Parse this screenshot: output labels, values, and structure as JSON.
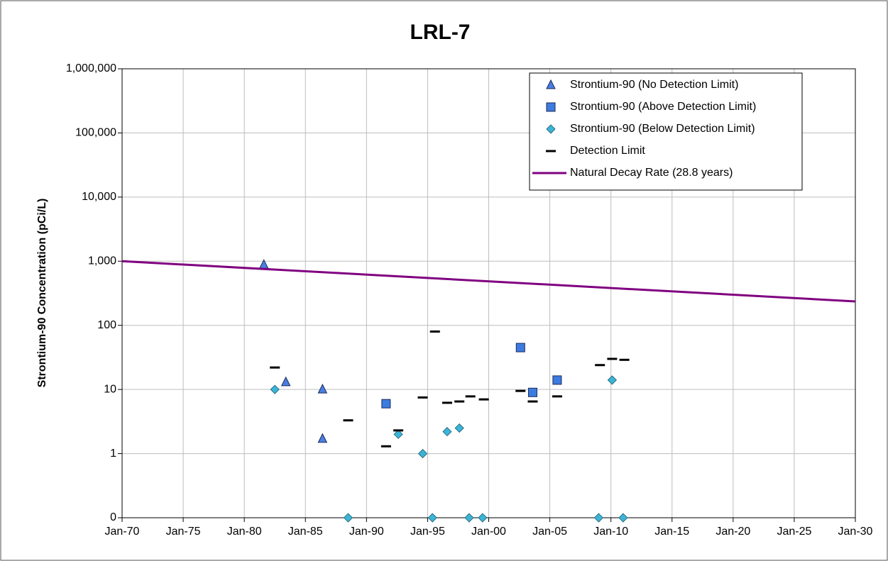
{
  "chart_data": {
    "type": "scatter",
    "title": "LRL-7",
    "y_label": "Strontium-90 Concentration (pCi/L)",
    "y_log": true,
    "grid": true,
    "legend": "upper right",
    "xlim": [
      1970,
      2030
    ],
    "xticks": [
      {
        "value": 1970,
        "label": "Jan-70"
      },
      {
        "value": 1975,
        "label": "Jan-75"
      },
      {
        "value": 1980,
        "label": "Jan-80"
      },
      {
        "value": 1985,
        "label": "Jan-85"
      },
      {
        "value": 1990,
        "label": "Jan-90"
      },
      {
        "value": 1995,
        "label": "Jan-95"
      },
      {
        "value": 2000,
        "label": "Jan-00"
      },
      {
        "value": 2005,
        "label": "Jan-05"
      },
      {
        "value": 2010,
        "label": "Jan-10"
      },
      {
        "value": 2015,
        "label": "Jan-15"
      },
      {
        "value": 2020,
        "label": "Jan-20"
      },
      {
        "value": 2025,
        "label": "Jan-25"
      },
      {
        "value": 2030,
        "label": "Jan-30"
      }
    ],
    "ylim": [
      0.1,
      1000000
    ],
    "yticks": [
      {
        "value": 0.1,
        "label": "0"
      },
      1,
      10,
      100,
      {
        "value": 1000,
        "label": "1,000"
      },
      {
        "value": 10000,
        "label": "10,000"
      },
      {
        "value": 100000,
        "label": "100,000"
      },
      {
        "value": 1000000,
        "label": "1,000,000"
      }
    ],
    "series": [
      {
        "name": "Strontium-90 (No Detection Limit)",
        "marker": "triangle",
        "color": "#4a7fe0",
        "x": [
          1981.6,
          1983.4,
          1986.4,
          1986.4
        ],
        "values": [
          880,
          13,
          10,
          1.7
        ]
      },
      {
        "name": "Strontium-90 (Above Detection Limit)",
        "marker": "square",
        "color": "#3d7be0",
        "x": [
          1991.6,
          2002.6,
          2003.6,
          2005.6
        ],
        "values": [
          6,
          45,
          9,
          14
        ]
      },
      {
        "name": "Strontium-90 (Below Detection Limit)",
        "marker": "diamond",
        "color": "#3cb4d8",
        "x": [
          1982.5,
          1988.5,
          1992.6,
          1994.6,
          1995.4,
          1996.6,
          1997.6,
          1998.4,
          1999.5,
          2009.0,
          2010.1,
          2011.0
        ],
        "values": [
          10,
          0.1,
          2,
          1,
          0.1,
          2.2,
          2.5,
          0.1,
          0.1,
          0.1,
          14,
          0.1
        ]
      },
      {
        "name": "Detection Limit",
        "marker": "dash",
        "color": "#000000",
        "x": [
          1982.5,
          1988.5,
          1991.6,
          1992.6,
          1994.6,
          1995.6,
          1996.6,
          1997.6,
          1998.5,
          1999.6,
          2002.6,
          2003.6,
          2005.6,
          2009.1,
          2010.1,
          2011.1
        ],
        "values": [
          22,
          3.3,
          1.3,
          2.3,
          7.5,
          80,
          6.2,
          6.5,
          7.8,
          7,
          9.5,
          6.5,
          7.8,
          24,
          30,
          29
        ]
      },
      {
        "name": "Natural Decay Rate (28.8 years)",
        "marker": "line",
        "color": "#800080",
        "x": [
          1970,
          2030
        ],
        "values": [
          1000,
          236
        ]
      }
    ]
  }
}
